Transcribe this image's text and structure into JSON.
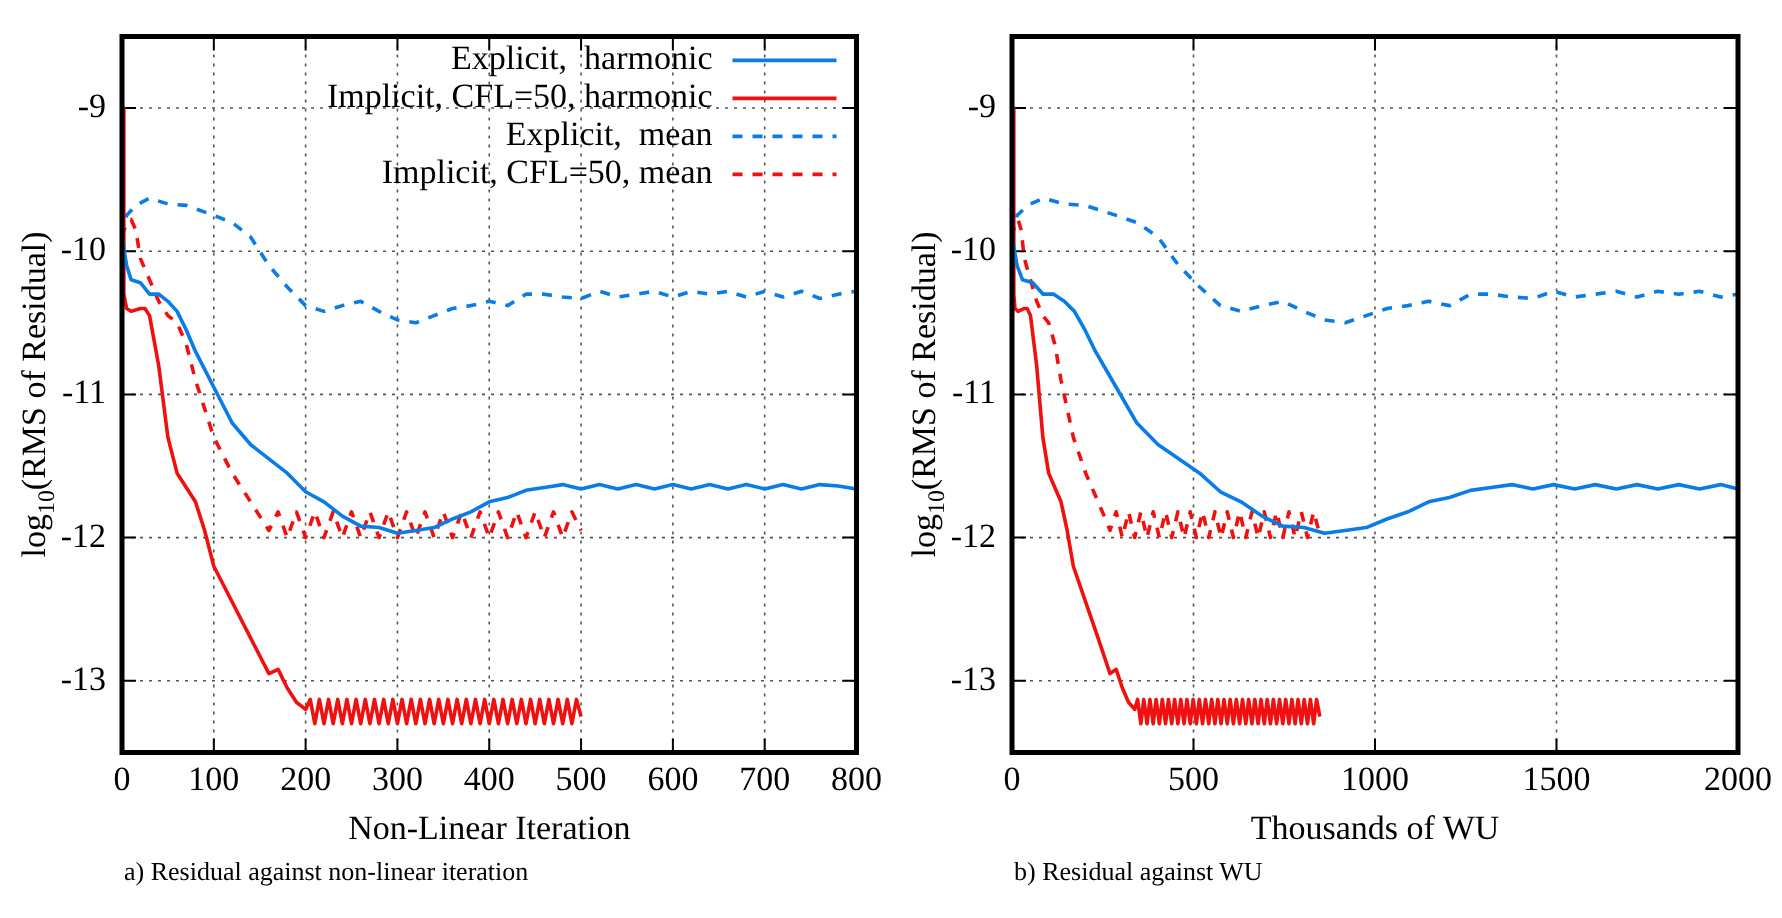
{
  "chart_data": [
    {
      "type": "line",
      "xlabel": "Non-Linear Iteration",
      "ylabel": "log$_{10}$(RMS of Residual)",
      "xlim": [
        0,
        800
      ],
      "ylim": [
        -13.5,
        -8.5
      ],
      "xticks": [
        0,
        100,
        200,
        300,
        400,
        500,
        600,
        700,
        800
      ],
      "yticks": [
        -13,
        -12,
        -11,
        -10,
        -9
      ],
      "grid": true,
      "legend": "top right",
      "annotations": [
        "a) Residual against non-linear iteration"
      ],
      "series": [
        {
          "name": "Explicit,  harmonic",
          "color": "#0a7ce6",
          "line_style": "solid",
          "x": [
            0,
            5,
            10,
            20,
            30,
            40,
            50,
            60,
            70,
            80,
            100,
            120,
            140,
            160,
            180,
            200,
            220,
            240,
            260,
            280,
            300,
            320,
            340,
            360,
            380,
            400,
            420,
            440,
            460,
            480,
            500,
            520,
            540,
            560,
            580,
            600,
            620,
            640,
            660,
            680,
            700,
            720,
            740,
            760,
            780,
            800
          ],
          "values": [
            -9.9,
            -10.1,
            -10.2,
            -10.22,
            -10.3,
            -10.3,
            -10.35,
            -10.42,
            -10.55,
            -10.7,
            -10.95,
            -11.2,
            -11.35,
            -11.45,
            -11.55,
            -11.68,
            -11.75,
            -11.85,
            -11.92,
            -11.93,
            -11.97,
            -11.95,
            -11.93,
            -11.87,
            -11.82,
            -11.75,
            -11.72,
            -11.67,
            -11.65,
            -11.63,
            -11.66,
            -11.63,
            -11.66,
            -11.63,
            -11.66,
            -11.63,
            -11.66,
            -11.63,
            -11.66,
            -11.63,
            -11.66,
            -11.63,
            -11.66,
            -11.63,
            -11.64,
            -11.66
          ]
        },
        {
          "name": "Implicit, CFL=50, harmonic",
          "color": "#f01010",
          "line_style": "solid",
          "x": [
            1,
            2,
            5,
            10,
            20,
            25,
            30,
            40,
            50,
            60,
            70,
            80,
            90,
            100,
            120,
            140,
            160,
            170,
            180,
            190,
            200,
            205,
            210,
            215,
            220,
            225,
            230,
            235,
            240,
            245,
            250,
            255,
            260,
            265,
            270,
            275,
            280,
            285,
            290,
            295,
            300,
            305,
            310,
            315,
            320,
            325,
            330,
            335,
            340,
            345,
            350,
            355,
            360,
            365,
            370,
            375,
            380,
            385,
            390,
            395,
            400,
            405,
            410,
            415,
            420,
            425,
            430,
            435,
            440,
            445,
            450,
            455,
            460,
            465,
            470,
            475,
            480,
            485,
            490,
            495,
            500
          ],
          "values": [
            -9.0,
            -10.3,
            -10.4,
            -10.42,
            -10.4,
            -10.4,
            -10.45,
            -10.8,
            -11.3,
            -11.55,
            -11.65,
            -11.75,
            -11.95,
            -12.2,
            -12.45,
            -12.7,
            -12.95,
            -12.92,
            -13.05,
            -13.15,
            -13.2,
            -13.13,
            -13.3,
            -13.13,
            -13.3,
            -13.13,
            -13.3,
            -13.13,
            -13.3,
            -13.13,
            -13.3,
            -13.13,
            -13.3,
            -13.13,
            -13.3,
            -13.13,
            -13.3,
            -13.13,
            -13.3,
            -13.13,
            -13.3,
            -13.13,
            -13.3,
            -13.13,
            -13.3,
            -13.13,
            -13.3,
            -13.13,
            -13.3,
            -13.13,
            -13.3,
            -13.13,
            -13.3,
            -13.13,
            -13.3,
            -13.13,
            -13.3,
            -13.13,
            -13.3,
            -13.13,
            -13.3,
            -13.13,
            -13.3,
            -13.13,
            -13.3,
            -13.13,
            -13.3,
            -13.13,
            -13.3,
            -13.13,
            -13.3,
            -13.13,
            -13.3,
            -13.13,
            -13.3,
            -13.13,
            -13.3,
            -13.13,
            -13.3,
            -13.13,
            -13.25
          ]
        },
        {
          "name": "Explicit,  mean",
          "color": "#0a7ce6",
          "line_style": "dashed",
          "x": [
            0,
            5,
            15,
            30,
            50,
            70,
            100,
            120,
            140,
            160,
            180,
            200,
            220,
            240,
            260,
            280,
            300,
            320,
            340,
            360,
            380,
            400,
            420,
            440,
            460,
            480,
            500,
            520,
            540,
            560,
            580,
            600,
            620,
            640,
            660,
            680,
            700,
            720,
            740,
            760,
            780,
            800
          ],
          "values": [
            -9.9,
            -9.75,
            -9.68,
            -9.63,
            -9.67,
            -9.68,
            -9.75,
            -9.8,
            -9.9,
            -10.1,
            -10.25,
            -10.38,
            -10.42,
            -10.38,
            -10.35,
            -10.42,
            -10.48,
            -10.5,
            -10.45,
            -10.4,
            -10.38,
            -10.35,
            -10.38,
            -10.3,
            -10.3,
            -10.32,
            -10.33,
            -10.28,
            -10.32,
            -10.3,
            -10.28,
            -10.32,
            -10.28,
            -10.3,
            -10.28,
            -10.32,
            -10.28,
            -10.32,
            -10.28,
            -10.33,
            -10.3,
            -10.28
          ]
        },
        {
          "name": "Implicit, CFL=50, mean",
          "color": "#f01010",
          "line_style": "dashed",
          "x": [
            0,
            5,
            10,
            15,
            20,
            30,
            40,
            50,
            60,
            70,
            80,
            90,
            100,
            120,
            140,
            150,
            160,
            170,
            180,
            190,
            200,
            210,
            220,
            230,
            240,
            250,
            260,
            270,
            280,
            290,
            300,
            310,
            320,
            330,
            340,
            350,
            360,
            370,
            380,
            390,
            400,
            410,
            420,
            430,
            440,
            450,
            460,
            470,
            480,
            490,
            500
          ],
          "values": [
            -9.9,
            -9.8,
            -9.78,
            -9.85,
            -10.05,
            -10.2,
            -10.35,
            -10.45,
            -10.5,
            -10.65,
            -10.9,
            -11.1,
            -11.3,
            -11.55,
            -11.75,
            -11.85,
            -11.95,
            -11.82,
            -12.0,
            -11.82,
            -12.0,
            -11.82,
            -12.0,
            -11.82,
            -12.0,
            -11.82,
            -12.0,
            -11.82,
            -12.0,
            -11.82,
            -12.0,
            -11.82,
            -12.0,
            -11.82,
            -12.0,
            -11.82,
            -12.0,
            -11.82,
            -12.0,
            -11.82,
            -12.0,
            -11.82,
            -12.0,
            -11.82,
            -12.0,
            -11.82,
            -12.0,
            -11.82,
            -12.0,
            -11.82,
            -11.95
          ]
        }
      ]
    },
    {
      "type": "line",
      "xlabel": "Thousands of WU",
      "ylabel": "log$_{10}$(RMS of Residual)",
      "xlim": [
        0,
        2000
      ],
      "ylim": [
        -13.5,
        -8.5
      ],
      "xticks": [
        0,
        500,
        1000,
        1500,
        2000
      ],
      "yticks": [
        -13,
        -12,
        -11,
        -10,
        -9
      ],
      "grid": true,
      "annotations": [
        "b) Residual against WU"
      ],
      "series": [
        {
          "color": "#0a7ce6",
          "line_style": "solid",
          "x": [
            0,
            14,
            29,
            57,
            86,
            115,
            144,
            172,
            201,
            230,
            287,
            344,
            402,
            459,
            517,
            574,
            631,
            689,
            746,
            804,
            861,
            918,
            976,
            1033,
            1091,
            1148,
            1205,
            1263,
            1320,
            1378,
            1435,
            1492,
            1550,
            1607,
            1665,
            1722,
            1779,
            1837,
            1894,
            1952,
            2000
          ],
          "values": [
            -9.9,
            -10.1,
            -10.2,
            -10.22,
            -10.3,
            -10.3,
            -10.35,
            -10.42,
            -10.55,
            -10.7,
            -10.95,
            -11.2,
            -11.35,
            -11.45,
            -11.55,
            -11.68,
            -11.75,
            -11.85,
            -11.92,
            -11.93,
            -11.97,
            -11.95,
            -11.93,
            -11.87,
            -11.82,
            -11.75,
            -11.72,
            -11.67,
            -11.65,
            -11.63,
            -11.66,
            -11.63,
            -11.66,
            -11.63,
            -11.66,
            -11.63,
            -11.66,
            -11.63,
            -11.66,
            -11.63,
            -11.66
          ]
        },
        {
          "color": "#f01010",
          "line_style": "solid",
          "x": [
            3,
            5,
            8,
            17,
            34,
            42,
            51,
            68,
            85,
            101,
            118,
            135,
            152,
            169,
            203,
            237,
            270,
            287,
            304,
            321,
            338,
            346,
            355,
            363,
            372,
            380,
            389,
            397,
            406,
            414,
            423,
            431,
            440,
            448,
            457,
            465,
            474,
            482,
            491,
            499,
            508,
            516,
            525,
            533,
            542,
            550,
            559,
            567,
            576,
            584,
            593,
            601,
            610,
            618,
            627,
            635,
            644,
            652,
            661,
            669,
            678,
            686,
            695,
            703,
            712,
            720,
            729,
            737,
            746,
            754,
            763,
            771,
            780,
            788,
            797,
            805,
            814,
            822,
            831,
            839,
            848
          ],
          "values": [
            -9.0,
            -10.3,
            -10.4,
            -10.42,
            -10.4,
            -10.4,
            -10.45,
            -10.8,
            -11.3,
            -11.55,
            -11.65,
            -11.75,
            -11.95,
            -12.2,
            -12.45,
            -12.7,
            -12.95,
            -12.92,
            -13.05,
            -13.15,
            -13.2,
            -13.13,
            -13.3,
            -13.13,
            -13.3,
            -13.13,
            -13.3,
            -13.13,
            -13.3,
            -13.13,
            -13.3,
            -13.13,
            -13.3,
            -13.13,
            -13.3,
            -13.13,
            -13.3,
            -13.13,
            -13.3,
            -13.13,
            -13.3,
            -13.13,
            -13.3,
            -13.13,
            -13.3,
            -13.13,
            -13.3,
            -13.13,
            -13.3,
            -13.13,
            -13.3,
            -13.13,
            -13.3,
            -13.13,
            -13.3,
            -13.13,
            -13.3,
            -13.13,
            -13.3,
            -13.13,
            -13.3,
            -13.13,
            -13.3,
            -13.13,
            -13.3,
            -13.13,
            -13.3,
            -13.13,
            -13.3,
            -13.13,
            -13.3,
            -13.13,
            -13.3,
            -13.13,
            -13.3,
            -13.13,
            -13.3,
            -13.13,
            -13.3,
            -13.13,
            -13.25
          ]
        },
        {
          "color": "#0a7ce6",
          "line_style": "dashed",
          "x": [
            0,
            14,
            43,
            86,
            144,
            201,
            287,
            344,
            402,
            459,
            517,
            574,
            631,
            689,
            746,
            804,
            861,
            918,
            976,
            1033,
            1091,
            1148,
            1205,
            1263,
            1320,
            1378,
            1435,
            1492,
            1550,
            1607,
            1665,
            1722,
            1779,
            1837,
            1894,
            1952,
            2000
          ],
          "values": [
            -9.9,
            -9.75,
            -9.68,
            -9.63,
            -9.67,
            -9.68,
            -9.75,
            -9.8,
            -9.9,
            -10.1,
            -10.25,
            -10.38,
            -10.42,
            -10.38,
            -10.35,
            -10.42,
            -10.48,
            -10.5,
            -10.45,
            -10.4,
            -10.38,
            -10.35,
            -10.38,
            -10.3,
            -10.3,
            -10.32,
            -10.33,
            -10.28,
            -10.32,
            -10.3,
            -10.28,
            -10.32,
            -10.28,
            -10.3,
            -10.28,
            -10.32,
            -10.3
          ]
        },
        {
          "color": "#f01010",
          "line_style": "dashed",
          "x": [
            0,
            8,
            17,
            25,
            34,
            51,
            68,
            85,
            101,
            118,
            135,
            152,
            169,
            203,
            237,
            254,
            270,
            287,
            304,
            321,
            338,
            355,
            372,
            389,
            406,
            423,
            440,
            457,
            474,
            491,
            508,
            525,
            542,
            559,
            576,
            593,
            610,
            627,
            644,
            661,
            678,
            695,
            712,
            729,
            746,
            763,
            780,
            797,
            814,
            831,
            845
          ],
          "values": [
            -9.9,
            -9.8,
            -9.78,
            -9.85,
            -10.05,
            -10.2,
            -10.35,
            -10.45,
            -10.5,
            -10.65,
            -10.9,
            -11.1,
            -11.3,
            -11.55,
            -11.75,
            -11.85,
            -11.95,
            -11.82,
            -12.0,
            -11.82,
            -12.0,
            -11.82,
            -12.0,
            -11.82,
            -12.0,
            -11.82,
            -12.0,
            -11.82,
            -12.0,
            -11.82,
            -12.0,
            -11.82,
            -12.0,
            -11.82,
            -12.0,
            -11.82,
            -12.0,
            -11.82,
            -12.0,
            -11.82,
            -12.0,
            -11.82,
            -12.0,
            -11.82,
            -12.0,
            -11.82,
            -12.0,
            -11.82,
            -12.0,
            -11.82,
            -11.95
          ]
        }
      ]
    }
  ]
}
